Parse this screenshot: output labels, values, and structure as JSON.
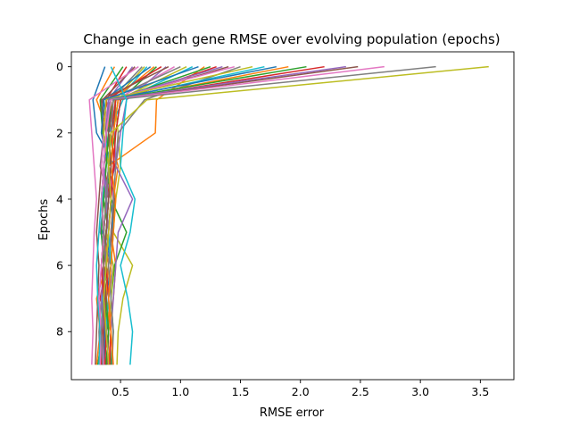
{
  "chart_data": {
    "type": "line",
    "title": "Change in each gene RMSE over evolving population (epochs)",
    "xlabel": "RMSE error",
    "ylabel": "Epochs",
    "xlim": [
      0.09,
      3.78
    ],
    "ylim": [
      9.45,
      -0.45
    ],
    "y_inverted": true,
    "grid": false,
    "x_ticks": [
      0.5,
      1.0,
      1.5,
      2.0,
      2.5,
      3.0,
      3.5
    ],
    "x_tick_labels": [
      "0.5",
      "1.0",
      "1.5",
      "2.0",
      "2.5",
      "3.0",
      "3.5"
    ],
    "y_ticks": [
      0,
      2,
      4,
      6,
      8
    ],
    "y_tick_labels": [
      "0",
      "2",
      "4",
      "6",
      "8"
    ],
    "epochs": [
      0,
      1,
      2,
      3,
      4,
      5,
      6,
      7,
      8,
      9
    ],
    "palette": [
      "#1f77b4",
      "#ff7f0e",
      "#2ca02c",
      "#d62728",
      "#9467bd",
      "#8c564b",
      "#e377c2",
      "#7f7f7f",
      "#bcbd22",
      "#17becf"
    ],
    "series": [
      {
        "values": [
          0.37,
          0.27,
          0.3,
          0.45,
          0.4,
          0.35,
          0.42,
          0.38,
          0.36,
          0.33
        ]
      },
      {
        "values": [
          0.45,
          0.3,
          0.4,
          0.48,
          0.44,
          0.42,
          0.46,
          0.44,
          0.4,
          0.38
        ]
      },
      {
        "values": [
          0.52,
          0.33,
          0.35,
          0.42,
          0.38,
          0.36,
          0.4,
          0.34,
          0.35,
          0.31
        ]
      },
      {
        "values": [
          0.55,
          0.38,
          0.42,
          0.36,
          0.42,
          0.4,
          0.38,
          0.33,
          0.4,
          0.35
        ]
      },
      {
        "values": [
          0.6,
          0.4,
          0.45,
          0.46,
          0.36,
          0.33,
          0.44,
          0.4,
          0.38,
          0.36
        ]
      },
      {
        "values": [
          0.62,
          0.35,
          0.38,
          0.4,
          0.45,
          0.43,
          0.4,
          0.37,
          0.42,
          0.4
        ]
      },
      {
        "values": [
          0.65,
          0.24,
          0.26,
          0.28,
          0.3,
          0.28,
          0.27,
          0.26,
          0.27,
          0.26
        ]
      },
      {
        "values": [
          0.68,
          0.42,
          0.36,
          0.33,
          0.4,
          0.38,
          0.34,
          0.38,
          0.36,
          0.34
        ]
      },
      {
        "values": [
          0.7,
          0.45,
          0.48,
          0.5,
          0.46,
          0.44,
          0.6,
          0.52,
          0.48,
          0.47
        ]
      },
      {
        "values": [
          0.72,
          0.48,
          0.44,
          0.38,
          0.35,
          0.34,
          0.36,
          0.35,
          0.34,
          0.33
        ]
      },
      {
        "values": [
          0.75,
          0.36,
          0.4,
          0.42,
          0.4,
          0.38,
          0.42,
          0.4,
          0.37,
          0.35
        ]
      },
      {
        "values": [
          0.78,
          0.44,
          0.38,
          0.36,
          0.34,
          0.36,
          0.38,
          0.3,
          0.33,
          0.3
        ]
      },
      {
        "values": [
          0.8,
          0.5,
          0.46,
          0.4,
          0.42,
          0.55,
          0.45,
          0.42,
          0.44,
          0.42
        ]
      },
      {
        "values": [
          0.84,
          0.38,
          0.42,
          0.45,
          0.38,
          0.36,
          0.34,
          0.37,
          0.35,
          0.34
        ]
      },
      {
        "values": [
          0.88,
          0.55,
          0.5,
          0.46,
          0.6,
          0.48,
          0.46,
          0.44,
          0.42,
          0.4
        ]
      },
      {
        "values": [
          0.9,
          0.34,
          0.36,
          0.34,
          0.32,
          0.3,
          0.32,
          0.31,
          0.3,
          0.29
        ]
      },
      {
        "values": [
          0.95,
          0.46,
          0.42,
          0.4,
          0.44,
          0.42,
          0.4,
          0.38,
          0.36,
          0.35
        ]
      },
      {
        "values": [
          1.0,
          0.4,
          0.38,
          0.36,
          0.38,
          0.4,
          0.36,
          0.34,
          0.32,
          0.33
        ]
      },
      {
        "values": [
          1.05,
          0.48,
          0.44,
          0.42,
          0.4,
          0.38,
          0.44,
          0.42,
          0.4,
          0.38
        ]
      },
      {
        "values": [
          1.1,
          0.52,
          0.4,
          0.36,
          0.34,
          0.32,
          0.3,
          0.31,
          0.33,
          0.32
        ]
      },
      {
        "values": [
          1.15,
          0.36,
          0.34,
          0.4,
          0.42,
          0.44,
          0.42,
          0.4,
          0.38,
          0.36
        ]
      },
      {
        "values": [
          1.2,
          0.8,
          0.79,
          0.4,
          0.38,
          0.36,
          0.4,
          0.38,
          0.42,
          0.4
        ]
      },
      {
        "values": [
          1.25,
          0.44,
          0.4,
          0.38,
          0.36,
          0.4,
          0.38,
          0.36,
          0.4,
          0.38
        ]
      },
      {
        "values": [
          1.3,
          0.5,
          0.46,
          0.44,
          0.42,
          0.4,
          0.38,
          0.4,
          0.42,
          0.41
        ]
      },
      {
        "values": [
          1.35,
          0.42,
          0.38,
          0.36,
          0.4,
          0.38,
          0.36,
          0.34,
          0.36,
          0.35
        ]
      },
      {
        "values": [
          1.4,
          0.46,
          0.44,
          0.42,
          0.4,
          0.38,
          0.36,
          0.38,
          0.4,
          0.39
        ]
      },
      {
        "values": [
          1.45,
          0.4,
          0.36,
          0.34,
          0.38,
          0.36,
          0.34,
          0.32,
          0.34,
          0.33
        ]
      },
      {
        "values": [
          1.5,
          0.7,
          0.48,
          0.46,
          0.44,
          0.42,
          0.4,
          0.42,
          0.44,
          0.43
        ]
      },
      {
        "values": [
          1.6,
          0.38,
          0.36,
          0.4,
          0.38,
          0.36,
          0.38,
          0.36,
          0.34,
          0.36
        ]
      },
      {
        "values": [
          1.7,
          0.44,
          0.42,
          0.4,
          0.38,
          0.4,
          0.42,
          0.4,
          0.38,
          0.37
        ]
      },
      {
        "values": [
          1.8,
          0.4,
          0.38,
          0.36,
          0.34,
          0.36,
          0.38,
          0.36,
          0.34,
          0.35
        ]
      },
      {
        "values": [
          1.9,
          0.48,
          0.44,
          0.42,
          0.46,
          0.44,
          0.42,
          0.4,
          0.42,
          0.44
        ]
      },
      {
        "values": [
          2.05,
          0.42,
          0.4,
          0.38,
          0.36,
          0.34,
          0.36,
          0.38,
          0.4,
          0.38
        ]
      },
      {
        "values": [
          2.2,
          0.46,
          0.42,
          0.4,
          0.38,
          0.36,
          0.34,
          0.36,
          0.38,
          0.37
        ]
      },
      {
        "values": [
          2.38,
          0.4,
          0.38,
          0.36,
          0.38,
          0.4,
          0.38,
          0.36,
          0.38,
          0.4
        ]
      },
      {
        "values": [
          2.48,
          0.44,
          0.4,
          0.42,
          0.4,
          0.38,
          0.36,
          0.38,
          0.36,
          0.35
        ]
      },
      {
        "values": [
          2.7,
          0.42,
          0.38,
          0.36,
          0.34,
          0.36,
          0.34,
          0.32,
          0.34,
          0.36
        ]
      },
      {
        "values": [
          3.13,
          0.44,
          0.42,
          0.4,
          0.38,
          0.36,
          0.38,
          0.36,
          0.34,
          0.35
        ]
      },
      {
        "values": [
          3.57,
          0.72,
          0.42,
          0.4,
          0.42,
          0.4,
          0.38,
          0.36,
          0.38,
          0.4
        ]
      },
      {
        "values": [
          0.42,
          0.55,
          0.52,
          0.5,
          0.62,
          0.58,
          0.5,
          0.56,
          0.6,
          0.58
        ]
      }
    ]
  }
}
